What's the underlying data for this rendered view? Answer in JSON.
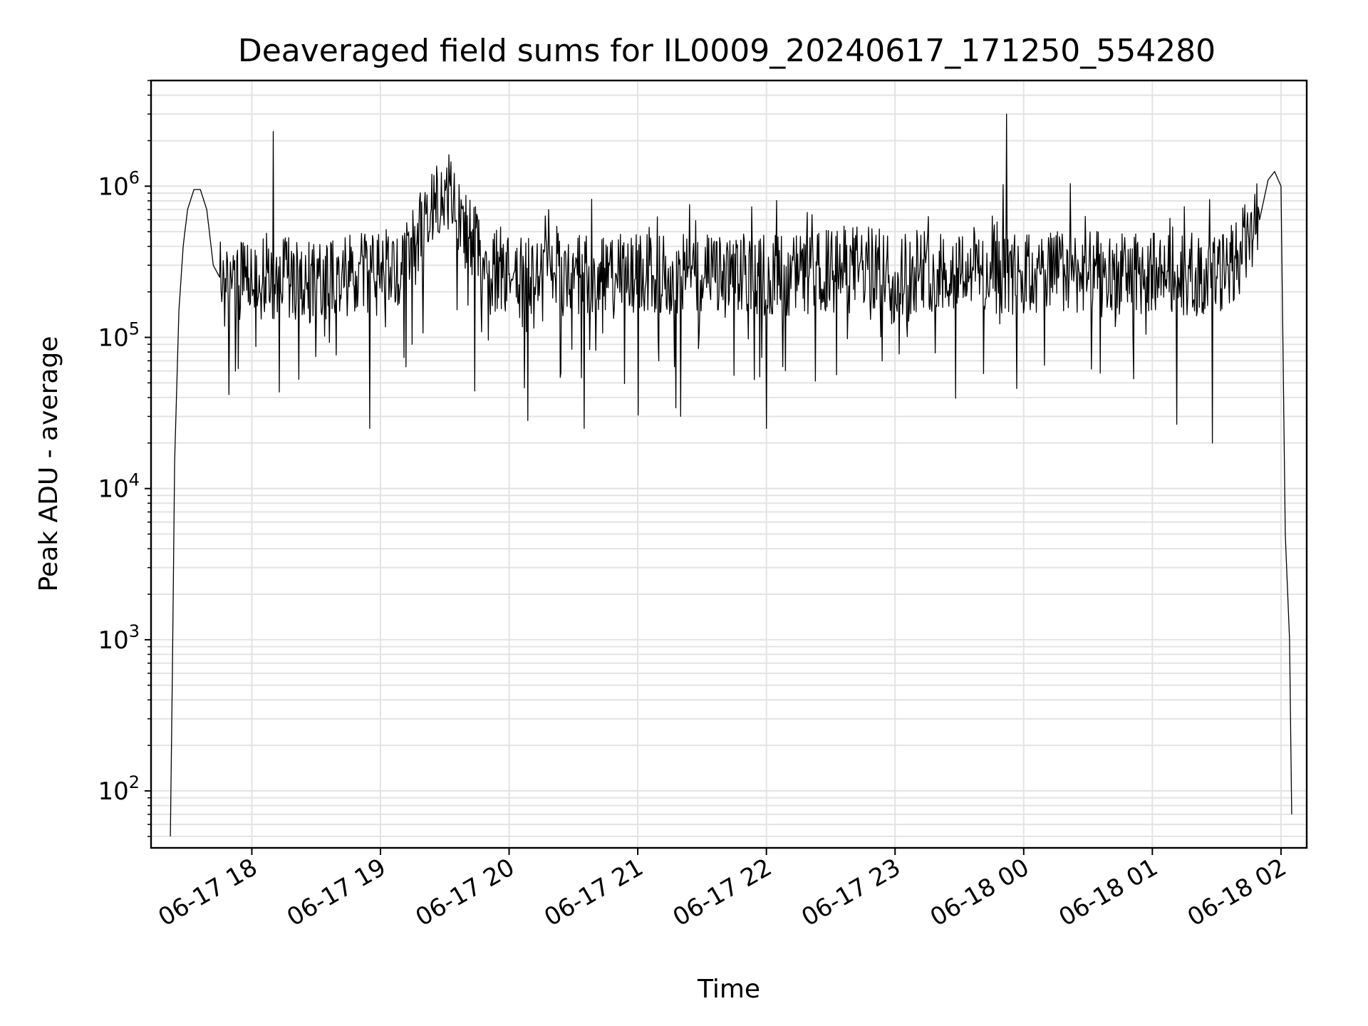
{
  "chart_data": {
    "type": "line",
    "title": "Deaveraged field sums for IL0009_20240617_171250_554280",
    "xlabel": "Time",
    "ylabel": "Peak ADU - average",
    "yscale": "log",
    "ylim": [
      42,
      5000000
    ],
    "y_ticks": [
      {
        "value": 100,
        "base": "10",
        "exp": "2"
      },
      {
        "value": 1000,
        "base": "10",
        "exp": "3"
      },
      {
        "value": 10000,
        "base": "10",
        "exp": "4"
      },
      {
        "value": 100000,
        "base": "10",
        "exp": "5"
      },
      {
        "value": 1000000,
        "base": "10",
        "exp": "6"
      }
    ],
    "xlim": [
      "2024-06-17 17:13",
      "2024-06-18 02:12"
    ],
    "x_ticks": [
      {
        "time": "2024-06-17 18:00",
        "label": "06-17 18"
      },
      {
        "time": "2024-06-17 19:00",
        "label": "06-17 19"
      },
      {
        "time": "2024-06-17 20:00",
        "label": "06-17 20"
      },
      {
        "time": "2024-06-17 21:00",
        "label": "06-17 21"
      },
      {
        "time": "2024-06-17 22:00",
        "label": "06-17 22"
      },
      {
        "time": "2024-06-17 23:00",
        "label": "06-17 23"
      },
      {
        "time": "2024-06-18 00:00",
        "label": "06-18 00"
      },
      {
        "time": "2024-06-18 01:00",
        "label": "06-18 01"
      },
      {
        "time": "2024-06-18 02:00",
        "label": "06-18 02"
      }
    ],
    "grid": true,
    "series": [
      {
        "color": "#000000",
        "x": [
          "2024-06-17 17:22",
          "2024-06-17 17:23",
          "2024-06-17 17:24",
          "2024-06-17 17:26",
          "2024-06-17 17:28",
          "2024-06-17 17:30",
          "2024-06-17 17:33",
          "2024-06-17 17:36",
          "2024-06-17 17:39",
          "2024-06-17 17:42",
          "2024-06-17 17:45",
          "2024-06-17 17:48",
          "2024-06-17 17:51",
          "2024-06-17 17:54",
          "2024-06-17 17:57",
          "2024-06-17 18:00",
          "2024-06-17 18:05",
          "2024-06-17 18:10",
          "2024-06-17 18:15",
          "2024-06-17 18:26",
          "2024-06-17 18:40",
          "2024-06-17 18:55",
          "2024-06-17 19:10",
          "2024-06-17 19:30",
          "2024-06-17 19:50",
          "2024-06-17 20:10",
          "2024-06-17 20:20",
          "2024-06-17 20:35",
          "2024-06-17 20:50",
          "2024-06-17 21:05",
          "2024-06-17 21:20",
          "2024-06-17 21:35",
          "2024-06-17 21:50",
          "2024-06-17 22:00",
          "2024-06-17 22:20",
          "2024-06-17 22:40",
          "2024-06-17 23:00",
          "2024-06-17 23:20",
          "2024-06-17 23:40",
          "2024-06-17 23:52",
          "2024-06-18 00:10",
          "2024-06-18 00:30",
          "2024-06-18 00:50",
          "2024-06-18 01:05",
          "2024-06-18 01:20",
          "2024-06-18 01:28",
          "2024-06-18 01:35",
          "2024-06-18 01:40",
          "2024-06-18 01:45",
          "2024-06-18 01:50",
          "2024-06-18 01:54",
          "2024-06-18 01:57",
          "2024-06-18 02:00",
          "2024-06-18 02:02",
          "2024-06-18 02:04",
          "2024-06-18 02:05"
        ],
        "y": [
          50,
          700,
          15000,
          150000,
          400000,
          700000,
          950000,
          950000,
          700000,
          300000,
          250000,
          200000,
          250000,
          220000,
          250000,
          240000,
          230000,
          2300000,
          250000,
          230000,
          260000,
          25000,
          260000,
          1100000,
          260000,
          250000,
          400000,
          25000,
          260000,
          260000,
          30000,
          250000,
          260000,
          25000,
          260000,
          300000,
          270000,
          280000,
          300000,
          3000000,
          280000,
          270000,
          260000,
          270000,
          260000,
          20000,
          300000,
          350000,
          450000,
          600000,
          1100000,
          1250000,
          1000000,
          5000,
          1000,
          70
        ]
      }
    ]
  }
}
